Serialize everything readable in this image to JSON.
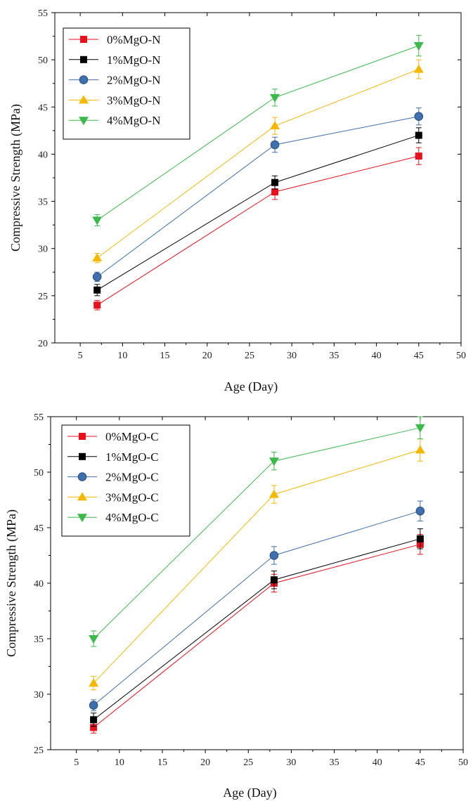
{
  "charts": [
    {
      "type": "line",
      "xlabel": "Age (Day)",
      "ylabel": "Compressive Strength (MPa)",
      "xlim": [
        2,
        50
      ],
      "ylim": [
        20,
        55
      ],
      "xticks": [
        5,
        10,
        15,
        20,
        25,
        30,
        35,
        40,
        45,
        50
      ],
      "yticks": [
        20,
        25,
        30,
        35,
        40,
        45,
        50,
        55
      ],
      "legend_position": "top-left",
      "x": [
        7,
        28,
        45
      ],
      "series": [
        {
          "name": "0%MgO-N",
          "marker": "square",
          "color": "#e8101a",
          "values": [
            24.0,
            36.0,
            39.8
          ],
          "errors": [
            0.5,
            0.8,
            0.9
          ]
        },
        {
          "name": "1%MgO-N",
          "marker": "square",
          "color": "#000000",
          "values": [
            25.6,
            37.0,
            42.0
          ],
          "errors": [
            0.6,
            0.7,
            0.8
          ]
        },
        {
          "name": "2%MgO-N",
          "marker": "circle",
          "color": "#3e6fae",
          "values": [
            27.0,
            41.0,
            44.0
          ],
          "errors": [
            0.5,
            0.8,
            0.9
          ]
        },
        {
          "name": "3%MgO-N",
          "marker": "triangle-up",
          "color": "#f5b700",
          "values": [
            29.0,
            43.0,
            49.0
          ],
          "errors": [
            0.5,
            0.9,
            1.0
          ]
        },
        {
          "name": "4%MgO-N",
          "marker": "triangle-down",
          "color": "#3cb94b",
          "values": [
            33.0,
            46.0,
            51.5
          ],
          "errors": [
            0.6,
            0.9,
            1.1
          ]
        }
      ]
    },
    {
      "type": "line",
      "xlabel": "Age (Day)",
      "ylabel": "Compressive Strength (MPa)",
      "xlim": [
        2,
        50
      ],
      "ylim": [
        25,
        55
      ],
      "xticks": [
        5,
        10,
        15,
        20,
        25,
        30,
        35,
        40,
        45,
        50
      ],
      "yticks": [
        25,
        30,
        35,
        40,
        45,
        50,
        55
      ],
      "legend_position": "top-left",
      "x": [
        7,
        28,
        45
      ],
      "series": [
        {
          "name": "0%MgO-C",
          "marker": "square",
          "color": "#e8101a",
          "values": [
            27.0,
            40.0,
            43.5
          ],
          "errors": [
            0.5,
            0.8,
            0.9
          ]
        },
        {
          "name": "1%MgO-C",
          "marker": "square",
          "color": "#000000",
          "values": [
            27.7,
            40.3,
            44.0
          ],
          "errors": [
            0.6,
            0.8,
            0.9
          ]
        },
        {
          "name": "2%MgO-C",
          "marker": "circle",
          "color": "#3e6fae",
          "values": [
            29.0,
            42.5,
            46.5
          ],
          "errors": [
            0.5,
            0.8,
            0.9
          ]
        },
        {
          "name": "3%MgO-C",
          "marker": "triangle-up",
          "color": "#f5b700",
          "values": [
            31.0,
            48.0,
            52.0
          ],
          "errors": [
            0.6,
            0.8,
            1.0
          ]
        },
        {
          "name": "4%MgO-C",
          "marker": "triangle-down",
          "color": "#3cb94b",
          "values": [
            35.0,
            51.0,
            54.0
          ],
          "errors": [
            0.7,
            0.8,
            1.0
          ]
        }
      ]
    }
  ]
}
